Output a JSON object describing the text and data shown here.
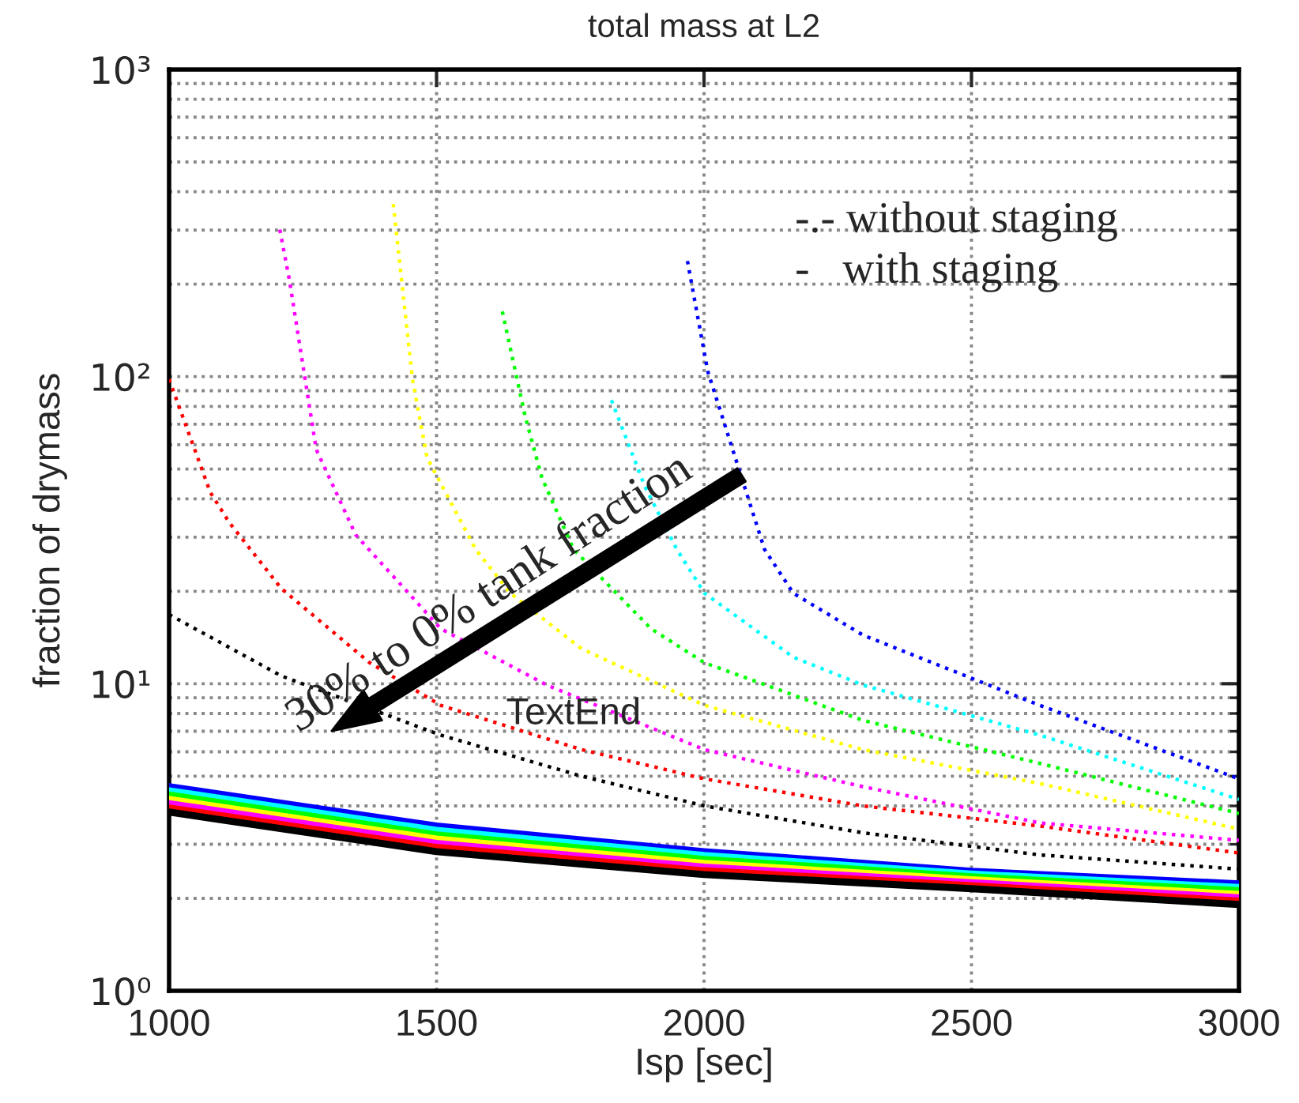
{
  "chart_data": {
    "type": "line",
    "title": "total mass at L2",
    "xlabel": "Isp [sec]",
    "ylabel": "fraction of drymass",
    "log": "y",
    "xlim": [
      1000,
      3000
    ],
    "xticks": [
      1000,
      1500,
      2000,
      2500,
      3000
    ],
    "ylim": [
      1,
      1000
    ],
    "yticks": [
      {
        "value": 1,
        "label": "10⁰"
      },
      {
        "value": 10,
        "label": "10¹"
      },
      {
        "value": 100,
        "label": "10²"
      },
      {
        "value": 1000,
        "label": "10³"
      }
    ],
    "grid": true,
    "annotations": [
      "-.- without staging",
      "-   with staging",
      "30% to 0% tank fraction",
      "TextEnd"
    ],
    "series": [
      {
        "color": "#ff0000",
        "line_style": "dotted",
        "x": [
          1000,
          1077,
          1112,
          1210,
          1375,
          1508,
          1771,
          2001,
          2297,
          2628,
          3000
        ],
        "values": [
          98,
          42,
          33.6,
          20.4,
          11.7,
          8.5,
          6.1,
          4.9,
          4.0,
          3.44,
          2.81
        ]
      },
      {
        "color": "#ff00ff",
        "line_style": "dotted",
        "x": [
          1207,
          1225,
          1275,
          1349,
          1508,
          1706,
          2001,
          2297,
          2628,
          3000
        ],
        "values": [
          301,
          206,
          58,
          30.5,
          15.1,
          9.9,
          6.1,
          4.62,
          3.52,
          3.09
        ]
      },
      {
        "color": "#ffff00",
        "line_style": "dotted",
        "x": [
          1419,
          1455,
          1482,
          1573,
          1638,
          1771,
          2001,
          2297,
          2628,
          3000
        ],
        "values": [
          365,
          98,
          54.6,
          27.4,
          19.7,
          13.0,
          8.5,
          6.1,
          4.73,
          3.36
        ]
      },
      {
        "color": "#00ff00",
        "line_style": "dotted",
        "x": [
          1623,
          1665,
          1697,
          1756,
          1901,
          2001,
          2297,
          2628,
          3000
        ],
        "values": [
          163,
          75,
          46.8,
          27.4,
          15.1,
          11.7,
          7.6,
          5.5,
          3.78
        ]
      },
      {
        "color": "#00ffff",
        "line_style": "dotted",
        "x": [
          1827,
          1889,
          1949,
          2001,
          2167,
          2297,
          2628,
          3000
        ],
        "values": [
          83.8,
          44,
          27.4,
          19.7,
          12.2,
          9.9,
          6.8,
          4.2
        ]
      },
      {
        "color": "#0000ff",
        "line_style": "dotted",
        "x": [
          1969,
          2007,
          2113,
          2167,
          2297,
          2628,
          3000
        ],
        "values": [
          238,
          104,
          27.4,
          19.7,
          14.4,
          8.5,
          4.9
        ]
      },
      {
        "color": "#000000",
        "line_style": "dotted",
        "x": [
          1000,
          1210,
          1508,
          1771,
          2001,
          2297,
          2628,
          3000
        ],
        "values": [
          16.8,
          10.6,
          6.8,
          5.0,
          4.0,
          3.27,
          2.77,
          2.49
        ]
      },
      {
        "color": "#0000ff",
        "line_style": "solid",
        "x": [
          1000,
          1500,
          2000,
          2500,
          3000
        ],
        "values": [
          4.62,
          3.44,
          2.84,
          2.45,
          2.23
        ]
      },
      {
        "color": "#00ffff",
        "line_style": "solid",
        "x": [
          1000,
          1500,
          2000,
          2500,
          3000
        ],
        "values": [
          4.48,
          3.33,
          2.76,
          2.4,
          2.17
        ]
      },
      {
        "color": "#00ff00",
        "line_style": "solid",
        "x": [
          1000,
          1500,
          2000,
          2500,
          3000
        ],
        "values": [
          4.34,
          3.22,
          2.68,
          2.35,
          2.12
        ]
      },
      {
        "color": "#ffff00",
        "line_style": "solid",
        "x": [
          1000,
          1500,
          2000,
          2500,
          3000
        ],
        "values": [
          4.2,
          3.12,
          2.6,
          2.3,
          2.06
        ]
      },
      {
        "color": "#ff00ff",
        "line_style": "solid",
        "x": [
          1000,
          1500,
          2000,
          2500,
          3000
        ],
        "values": [
          4.07,
          3.02,
          2.53,
          2.25,
          2.01
        ]
      },
      {
        "color": "#ff0000",
        "line_style": "solid",
        "x": [
          1000,
          1500,
          2000,
          2500,
          3000
        ],
        "values": [
          3.94,
          2.93,
          2.46,
          2.2,
          1.96
        ]
      },
      {
        "color": "#000000",
        "line_style": "solid",
        "x": [
          1000,
          1500,
          2000,
          2500,
          3000
        ],
        "values": [
          3.82,
          2.84,
          2.39,
          2.15,
          1.91
        ]
      }
    ]
  }
}
